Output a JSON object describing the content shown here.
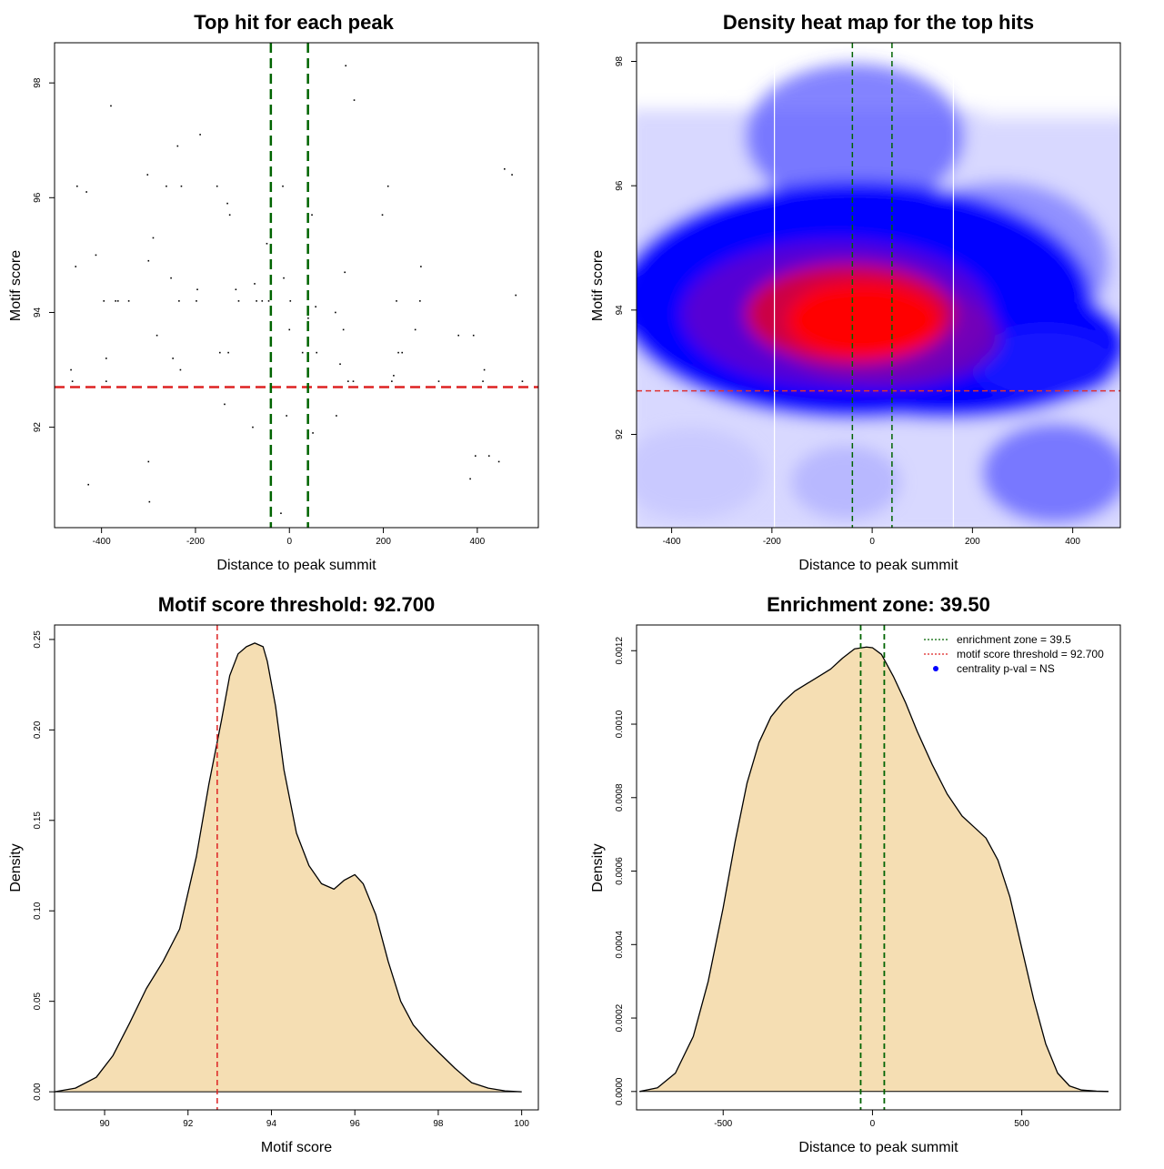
{
  "chart_data": [
    {
      "id": "scatter",
      "type": "scatter",
      "title": "Top hit for each peak",
      "xlabel": "Distance to peak summit",
      "ylabel": "Motif score",
      "xlim": [
        -500,
        530
      ],
      "ylim": [
        90.25,
        98.7
      ],
      "xticks": [
        -400,
        -200,
        0,
        200,
        400
      ],
      "yticks": [
        92,
        94,
        96,
        98
      ],
      "grid": false,
      "colors": {
        "threshold": "#dd2222",
        "zone": "#006400",
        "points": "#000000"
      },
      "hlines": [
        92.7
      ],
      "vlines": [
        -39.5,
        39.5
      ],
      "points": [
        [
          -465,
          93.0
        ],
        [
          -462,
          92.8
        ],
        [
          -455,
          94.8
        ],
        [
          -452,
          96.2
        ],
        [
          -432,
          96.1
        ],
        [
          -428,
          91.0
        ],
        [
          -412,
          95.0
        ],
        [
          -395,
          94.2
        ],
        [
          -390,
          93.2
        ],
        [
          -390,
          92.8
        ],
        [
          -380,
          97.6
        ],
        [
          -370,
          94.2
        ],
        [
          -365,
          94.2
        ],
        [
          -342,
          94.2
        ],
        [
          -302,
          96.4
        ],
        [
          -300,
          94.9
        ],
        [
          -300,
          91.4
        ],
        [
          -298,
          90.7
        ],
        [
          -290,
          95.3
        ],
        [
          -282,
          93.6
        ],
        [
          -262,
          96.2
        ],
        [
          -252,
          94.6
        ],
        [
          -248,
          93.2
        ],
        [
          -238,
          96.9
        ],
        [
          -235,
          94.2
        ],
        [
          -232,
          93.0
        ],
        [
          -230,
          96.2
        ],
        [
          -198,
          94.2
        ],
        [
          -196,
          94.4
        ],
        [
          -190,
          97.1
        ],
        [
          -154,
          96.2
        ],
        [
          -148,
          93.3
        ],
        [
          -138,
          92.4
        ],
        [
          -132,
          95.9
        ],
        [
          -130,
          93.3
        ],
        [
          -127,
          95.7
        ],
        [
          -114,
          94.4
        ],
        [
          -108,
          94.2
        ],
        [
          -78,
          92.0
        ],
        [
          -74,
          94.5
        ],
        [
          -70,
          94.2
        ],
        [
          -58,
          94.2
        ],
        [
          -48,
          95.2
        ],
        [
          -44,
          94.2
        ],
        [
          -40,
          92.7
        ],
        [
          -18,
          90.5
        ],
        [
          -14,
          96.2
        ],
        [
          -12,
          94.6
        ],
        [
          -6,
          92.2
        ],
        [
          2,
          94.2
        ],
        [
          0,
          93.7
        ],
        [
          28,
          93.3
        ],
        [
          40,
          93.9
        ],
        [
          48,
          95.7
        ],
        [
          50,
          91.9
        ],
        [
          56,
          94.1
        ],
        [
          58,
          93.3
        ],
        [
          98,
          94.0
        ],
        [
          100,
          92.2
        ],
        [
          108,
          93.1
        ],
        [
          115,
          93.7
        ],
        [
          118,
          94.7
        ],
        [
          120,
          98.3
        ],
        [
          125,
          92.8
        ],
        [
          136,
          92.8
        ],
        [
          138,
          97.7
        ],
        [
          198,
          95.7
        ],
        [
          210,
          96.2
        ],
        [
          218,
          92.8
        ],
        [
          222,
          92.9
        ],
        [
          228,
          94.2
        ],
        [
          232,
          93.3
        ],
        [
          240,
          93.3
        ],
        [
          268,
          93.7
        ],
        [
          278,
          94.2
        ],
        [
          280,
          94.8
        ],
        [
          318,
          92.8
        ],
        [
          360,
          93.6
        ],
        [
          385,
          91.1
        ],
        [
          392,
          93.6
        ],
        [
          396,
          91.5
        ],
        [
          412,
          92.8
        ],
        [
          415,
          93.0
        ],
        [
          425,
          91.5
        ],
        [
          446,
          91.4
        ],
        [
          458,
          96.5
        ],
        [
          466,
          92.7
        ],
        [
          474,
          96.4
        ],
        [
          482,
          94.3
        ],
        [
          496,
          92.8
        ]
      ]
    },
    {
      "id": "heatmap",
      "type": "heatmap",
      "title": "Density heat map for the top hits",
      "xlabel": "Distance to peak summit",
      "ylabel": "Motif score",
      "xlim": [
        -470,
        495
      ],
      "ylim": [
        90.5,
        98.3
      ],
      "xticks": [
        -400,
        -200,
        0,
        200,
        400
      ],
      "yticks": [
        92,
        94,
        96,
        98
      ],
      "colors": {
        "low": "#ffffff",
        "mid": "#0000ff",
        "high": "#ff0000",
        "threshold": "#dd3333",
        "zone": "#006400",
        "bounds": "#ffffff"
      },
      "hlines": [
        92.7
      ],
      "vlines": [
        -39.5,
        39.5
      ],
      "bound_lines": [
        -195,
        162
      ],
      "color_scale": [
        "white",
        "blue",
        "red"
      ]
    },
    {
      "id": "score-density",
      "type": "area",
      "title": "Motif score threshold: 92.700",
      "xlabel": "Motif score",
      "ylabel": "Density",
      "xlim": [
        88.8,
        100.4
      ],
      "ylim": [
        -0.01,
        0.258
      ],
      "xticks": [
        90,
        92,
        94,
        96,
        98,
        100
      ],
      "yticks": [
        "0.00",
        "0.05",
        "0.10",
        "0.15",
        "0.20",
        "0.25"
      ],
      "colors": {
        "fill": "#f5deb3",
        "line": "#000000",
        "threshold": "#dd2222"
      },
      "vlines": [
        92.7
      ],
      "x": [
        88.8,
        89.3,
        89.8,
        90.2,
        90.6,
        91.0,
        91.4,
        91.8,
        92.2,
        92.5,
        92.8,
        93.0,
        93.2,
        93.4,
        93.6,
        93.8,
        93.9,
        94.1,
        94.3,
        94.6,
        94.9,
        95.2,
        95.5,
        95.75,
        96.0,
        96.2,
        96.5,
        96.8,
        97.1,
        97.4,
        97.7,
        98.0,
        98.4,
        98.8,
        99.2,
        99.6,
        100.0
      ],
      "y": [
        0.0,
        0.002,
        0.008,
        0.02,
        0.038,
        0.057,
        0.072,
        0.09,
        0.13,
        0.17,
        0.205,
        0.23,
        0.242,
        0.246,
        0.248,
        0.246,
        0.238,
        0.213,
        0.178,
        0.143,
        0.125,
        0.115,
        0.112,
        0.117,
        0.12,
        0.115,
        0.098,
        0.072,
        0.05,
        0.037,
        0.029,
        0.022,
        0.013,
        0.005,
        0.002,
        0.0005,
        0.0
      ]
    },
    {
      "id": "distance-density",
      "type": "area",
      "title": "Enrichment zone: 39.50",
      "xlabel": "Distance to peak summit",
      "ylabel": "Density",
      "xlim": [
        -790,
        830
      ],
      "ylim": [
        -5e-05,
        0.00127
      ],
      "xticks": [
        -500,
        0,
        500
      ],
      "yticks": [
        "0.0000",
        "0.0002",
        "0.0004",
        "0.0006",
        "0.0008",
        "0.0010",
        "0.0012"
      ],
      "colors": {
        "fill": "#f5deb3",
        "line": "#000000",
        "zone": "#006400",
        "threshold": "#dd2222",
        "pval": "#0000ff"
      },
      "vlines": [
        -39.5,
        39.5
      ],
      "legend": [
        "enrichment zone = 39.5",
        "motif score threshold = 92.700",
        "centrality p-val = NS"
      ],
      "legend_position": "top-right",
      "x": [
        -780,
        -720,
        -660,
        -600,
        -550,
        -500,
        -460,
        -420,
        -380,
        -340,
        -300,
        -260,
        -220,
        -180,
        -140,
        -100,
        -60,
        -20,
        0,
        30,
        70,
        110,
        150,
        200,
        250,
        300,
        340,
        380,
        420,
        460,
        500,
        540,
        580,
        620,
        660,
        700,
        750,
        790
      ],
      "y": [
        0.0,
        1e-05,
        5e-05,
        0.00015,
        0.0003,
        0.0005,
        0.00068,
        0.00084,
        0.00095,
        0.00102,
        0.00106,
        0.00109,
        0.00111,
        0.00113,
        0.00115,
        0.00118,
        0.001205,
        0.00121,
        0.001208,
        0.00119,
        0.00113,
        0.00106,
        0.00098,
        0.00089,
        0.00081,
        0.00075,
        0.00072,
        0.00069,
        0.00063,
        0.00053,
        0.00039,
        0.00025,
        0.00013,
        5e-05,
        1.5e-05,
        4e-06,
        1e-06,
        0.0
      ]
    }
  ]
}
